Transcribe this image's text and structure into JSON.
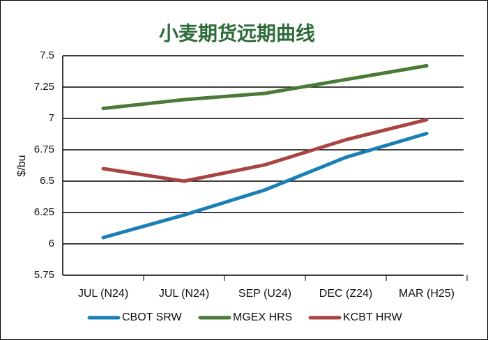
{
  "chart_data": {
    "type": "line",
    "title": "小麦期货远期曲线",
    "y_label": "$/bu",
    "categories": [
      "JUL (N24)",
      "JUL (N24)",
      "SEP (U24)",
      "DEC (Z24)",
      "MAR (H25)"
    ],
    "series": [
      {
        "name": "CBOT SRW",
        "color": "#1a7fb5",
        "values": [
          6.05,
          6.23,
          6.43,
          6.69,
          6.88
        ]
      },
      {
        "name": "MGEX HRS",
        "color": "#4a7a35",
        "values": [
          7.08,
          7.15,
          7.2,
          7.31,
          7.42
        ]
      },
      {
        "name": "KCBT HRW",
        "color": "#a94442",
        "values": [
          6.6,
          6.5,
          6.63,
          6.83,
          6.99
        ]
      }
    ],
    "ylim": [
      5.75,
      7.5
    ],
    "yticks": [
      5.75,
      6,
      6.25,
      6.5,
      6.75,
      7,
      7.25,
      7.5
    ],
    "grid": true
  }
}
